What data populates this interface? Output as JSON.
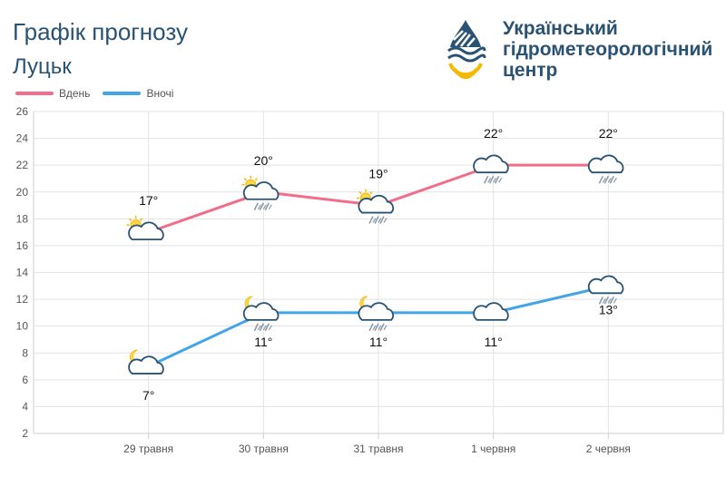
{
  "header": {
    "title": "Графік прогнозу",
    "city": "Луцьк",
    "org_line1": "Український",
    "org_line2": "гідрометеорологічний",
    "org_line3": "центр"
  },
  "colors": {
    "day": "#f06e8a",
    "night": "#42a5e8",
    "title": "#2a5373",
    "logo_blue": "#2a5373",
    "logo_yellow": "#f5b800"
  },
  "chart_data": {
    "type": "line",
    "categories": [
      "29 травня",
      "30 травня",
      "31 травня",
      "1 червня",
      "2 червня"
    ],
    "ylim": [
      2,
      26
    ],
    "yticks": [
      2,
      4,
      6,
      8,
      10,
      12,
      14,
      16,
      18,
      20,
      22,
      24,
      26
    ],
    "grid": true,
    "legend_position": "top-left",
    "series": [
      {
        "name": "Вдень",
        "values": [
          17,
          20,
          19,
          22,
          22
        ],
        "labels": [
          "17°",
          "20°",
          "19°",
          "22°",
          "22°"
        ],
        "icons": [
          "sun-cloud-icon",
          "sun-cloud-rain-icon",
          "sun-cloud-rain-icon",
          "cloud-rain-icon",
          "cloud-rain-icon"
        ]
      },
      {
        "name": "Вночі",
        "values": [
          7,
          11,
          11,
          11,
          13
        ],
        "labels": [
          "7°",
          "11°",
          "11°",
          "11°",
          "13°"
        ],
        "icons": [
          "moon-cloud-icon",
          "moon-cloud-rain-icon",
          "moon-cloud-rain-icon",
          "cloud-icon",
          "cloud-rain-icon"
        ]
      }
    ]
  }
}
